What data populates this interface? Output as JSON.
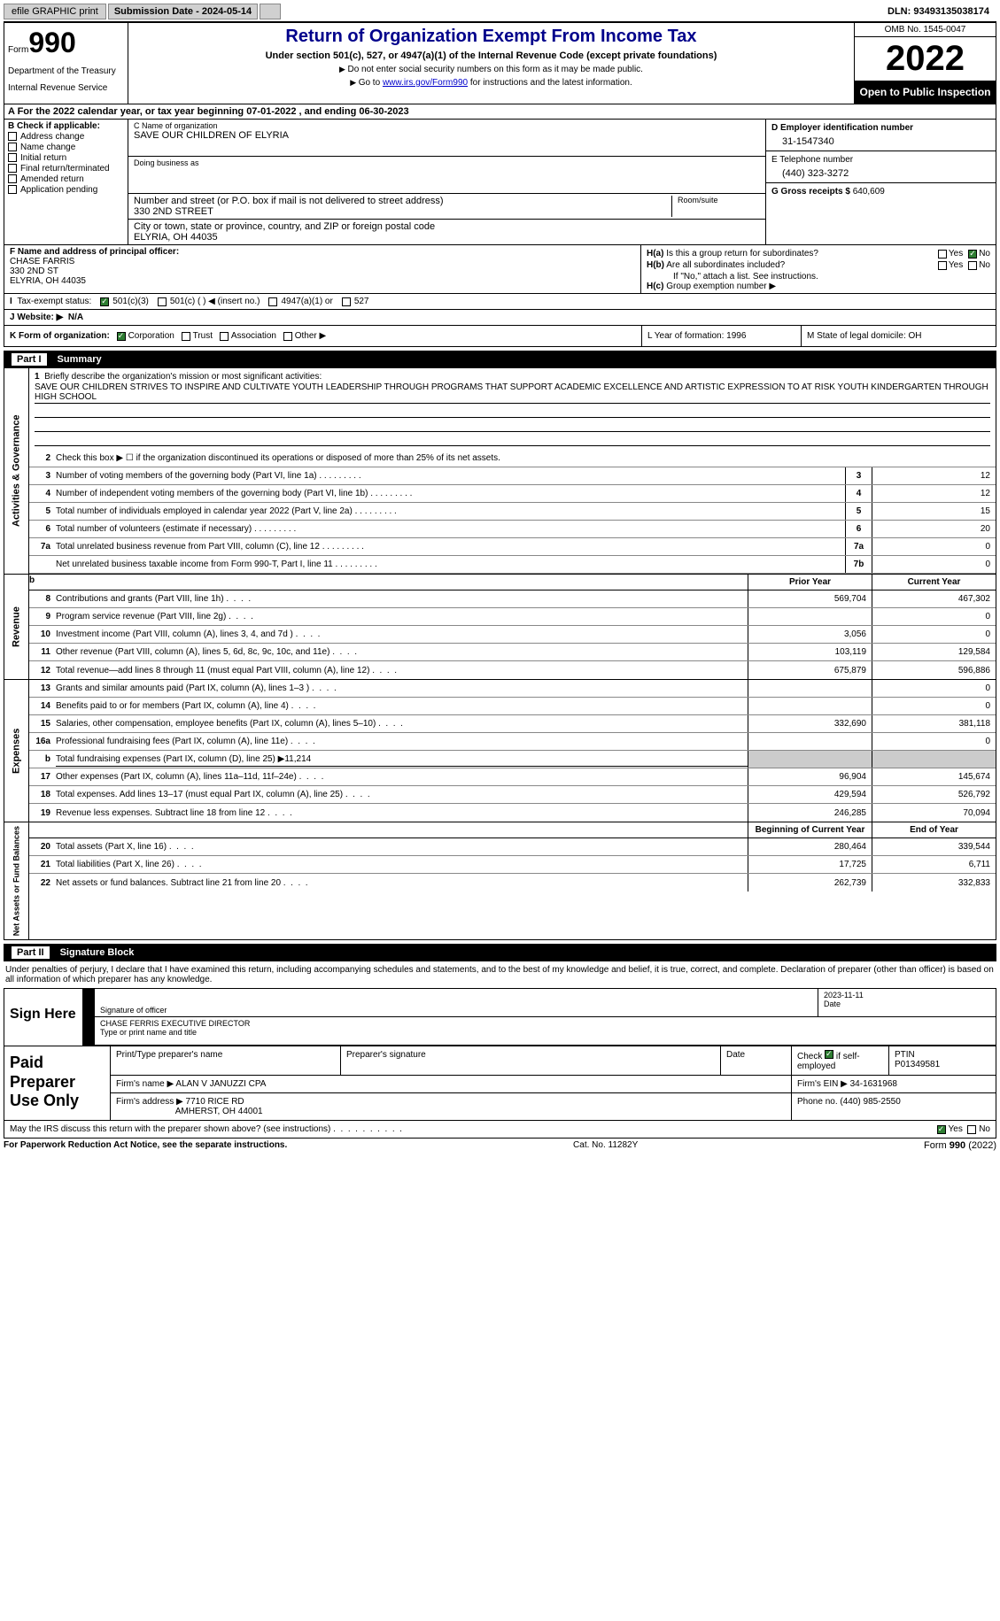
{
  "topbar": {
    "efile": "efile GRAPHIC print",
    "submission_label": "Submission Date - 2024-05-14",
    "dln": "DLN: 93493135038174"
  },
  "header": {
    "form_prefix": "Form",
    "form_number": "990",
    "dept": "Department of the Treasury",
    "irs": "Internal Revenue Service",
    "title": "Return of Organization Exempt From Income Tax",
    "subtitle": "Under section 501(c), 527, or 4947(a)(1) of the Internal Revenue Code (except private foundations)",
    "instr1": "Do not enter social security numbers on this form as it may be made public.",
    "instr2_pre": "Go to ",
    "instr2_link": "www.irs.gov/Form990",
    "instr2_post": " for instructions and the latest information.",
    "omb": "OMB No. 1545-0047",
    "year": "2022",
    "open": "Open to Public Inspection"
  },
  "period": "A For the 2022 calendar year, or tax year beginning 07-01-2022    , and ending 06-30-2023",
  "box_b": {
    "label": "B Check if applicable:",
    "opts": [
      "Address change",
      "Name change",
      "Initial return",
      "Final return/terminated",
      "Amended return",
      "Application pending"
    ]
  },
  "box_c": {
    "name_label": "C Name of organization",
    "name": "SAVE OUR CHILDREN OF ELYRIA",
    "dba_label": "Doing business as",
    "addr_label": "Number and street (or P.O. box if mail is not delivered to street address)",
    "addr": "330 2ND STREET",
    "room_label": "Room/suite",
    "city_label": "City or town, state or province, country, and ZIP or foreign postal code",
    "city": "ELYRIA, OH  44035"
  },
  "box_d": {
    "ein_label": "D Employer identification number",
    "ein": "31-1547340",
    "phone_label": "E Telephone number",
    "phone": "(440) 323-3272",
    "gross_label": "G Gross receipts $",
    "gross": "640,609"
  },
  "box_f": {
    "label": "F Name and address of principal officer:",
    "name": "CHASE FARRIS",
    "addr1": "330 2ND ST",
    "addr2": "ELYRIA, OH  44035"
  },
  "box_h": {
    "a_label": "Is this a group return for subordinates?",
    "b_label": "Are all subordinates included?",
    "b_note": "If \"No,\" attach a list. See instructions.",
    "c_label": "Group exemption number ▶",
    "yes": "Yes",
    "no": "No"
  },
  "box_i": {
    "label": "Tax-exempt status:",
    "o1": "501(c)(3)",
    "o2": "501(c) (  ) ◀ (insert no.)",
    "o3": "4947(a)(1) or",
    "o4": "527"
  },
  "box_j": {
    "label": "J   Website: ▶",
    "val": "N/A"
  },
  "box_k": {
    "label": "K Form of organization:",
    "o1": "Corporation",
    "o2": "Trust",
    "o3": "Association",
    "o4": "Other ▶"
  },
  "box_l": "L Year of formation: 1996",
  "box_m": "M State of legal domicile: OH",
  "part1": {
    "num": "Part I",
    "title": "Summary"
  },
  "summary": {
    "mission_label": "Briefly describe the organization's mission or most significant activities:",
    "mission": "SAVE OUR CHILDREN STRIVES TO INSPIRE AND CULTIVATE YOUTH LEADERSHIP THROUGH PROGRAMS THAT SUPPORT ACADEMIC EXCELLENCE AND ARTISTIC EXPRESSION TO AT RISK YOUTH KINDERGARTEN THROUGH HIGH SCHOOL",
    "line2": "Check this box ▶ ☐ if the organization discontinued its operations or disposed of more than 25% of its net assets.",
    "lines_gov": [
      {
        "n": "3",
        "t": "Number of voting members of the governing body (Part VI, line 1a)",
        "b": "3",
        "v": "12"
      },
      {
        "n": "4",
        "t": "Number of independent voting members of the governing body (Part VI, line 1b)",
        "b": "4",
        "v": "12"
      },
      {
        "n": "5",
        "t": "Total number of individuals employed in calendar year 2022 (Part V, line 2a)",
        "b": "5",
        "v": "15"
      },
      {
        "n": "6",
        "t": "Total number of volunteers (estimate if necessary)",
        "b": "6",
        "v": "20"
      },
      {
        "n": "7a",
        "t": "Total unrelated business revenue from Part VIII, column (C), line 12",
        "b": "7a",
        "v": "0"
      },
      {
        "n": "",
        "t": "Net unrelated business taxable income from Form 990-T, Part I, line 11",
        "b": "7b",
        "v": "0"
      }
    ],
    "prior_label": "Prior Year",
    "current_label": "Current Year",
    "revenue": [
      {
        "n": "8",
        "t": "Contributions and grants (Part VIII, line 1h)",
        "p": "569,704",
        "c": "467,302"
      },
      {
        "n": "9",
        "t": "Program service revenue (Part VIII, line 2g)",
        "p": "",
        "c": "0"
      },
      {
        "n": "10",
        "t": "Investment income (Part VIII, column (A), lines 3, 4, and 7d )",
        "p": "3,056",
        "c": "0"
      },
      {
        "n": "11",
        "t": "Other revenue (Part VIII, column (A), lines 5, 6d, 8c, 9c, 10c, and 11e)",
        "p": "103,119",
        "c": "129,584"
      },
      {
        "n": "12",
        "t": "Total revenue—add lines 8 through 11 (must equal Part VIII, column (A), line 12)",
        "p": "675,879",
        "c": "596,886"
      }
    ],
    "expenses": [
      {
        "n": "13",
        "t": "Grants and similar amounts paid (Part IX, column (A), lines 1–3 )",
        "p": "",
        "c": "0"
      },
      {
        "n": "14",
        "t": "Benefits paid to or for members (Part IX, column (A), line 4)",
        "p": "",
        "c": "0"
      },
      {
        "n": "15",
        "t": "Salaries, other compensation, employee benefits (Part IX, column (A), lines 5–10)",
        "p": "332,690",
        "c": "381,118"
      },
      {
        "n": "16a",
        "t": "Professional fundraising fees (Part IX, column (A), line 11e)",
        "p": "",
        "c": "0"
      },
      {
        "n": "b",
        "t": "Total fundraising expenses (Part IX, column (D), line 25) ▶11,214",
        "p": "shaded",
        "c": "shaded"
      },
      {
        "n": "17",
        "t": "Other expenses (Part IX, column (A), lines 11a–11d, 11f–24e)",
        "p": "96,904",
        "c": "145,674"
      },
      {
        "n": "18",
        "t": "Total expenses. Add lines 13–17 (must equal Part IX, column (A), line 25)",
        "p": "429,594",
        "c": "526,792"
      },
      {
        "n": "19",
        "t": "Revenue less expenses. Subtract line 18 from line 12",
        "p": "246,285",
        "c": "70,094"
      }
    ],
    "begin_label": "Beginning of Current Year",
    "end_label": "End of Year",
    "netassets": [
      {
        "n": "20",
        "t": "Total assets (Part X, line 16)",
        "p": "280,464",
        "c": "339,544"
      },
      {
        "n": "21",
        "t": "Total liabilities (Part X, line 26)",
        "p": "17,725",
        "c": "6,711"
      },
      {
        "n": "22",
        "t": "Net assets or fund balances. Subtract line 21 from line 20",
        "p": "262,739",
        "c": "332,833"
      }
    ],
    "tab_gov": "Activities & Governance",
    "tab_rev": "Revenue",
    "tab_exp": "Expenses",
    "tab_net": "Net Assets or Fund Balances"
  },
  "part2": {
    "num": "Part II",
    "title": "Signature Block"
  },
  "sig": {
    "intro": "Under penalties of perjury, I declare that I have examined this return, including accompanying schedules and statements, and to the best of my knowledge and belief, it is true, correct, and complete. Declaration of preparer (other than officer) is based on all information of which preparer has any knowledge.",
    "sign_here": "Sign Here",
    "sig_of_officer": "Signature of officer",
    "date": "2023-11-11",
    "date_lbl": "Date",
    "name_title": "CHASE FERRIS  EXECUTIVE DIRECTOR",
    "name_title_lbl": "Type or print name and title"
  },
  "paid": {
    "title": "Paid Preparer Use Only",
    "h1": "Print/Type preparer's name",
    "h2": "Preparer's signature",
    "h3": "Date",
    "h4_check": "Check",
    "h4_if": "if self-employed",
    "h5": "PTIN",
    "ptin": "P01349581",
    "firm_name_lbl": "Firm's name    ▶",
    "firm_name": "ALAN V JANUZZI CPA",
    "firm_ein_lbl": "Firm's EIN ▶",
    "firm_ein": "34-1631968",
    "firm_addr_lbl": "Firm's address ▶",
    "firm_addr1": "7710 RICE RD",
    "firm_addr2": "AMHERST, OH  44001",
    "phone_lbl": "Phone no.",
    "phone": "(440) 985-2550"
  },
  "discuss": {
    "text": "May the IRS discuss this return with the preparer shown above? (see instructions)",
    "yes": "Yes",
    "no": "No"
  },
  "footer": {
    "left": "For Paperwork Reduction Act Notice, see the separate instructions.",
    "center": "Cat. No. 11282Y",
    "right": "Form 990 (2022)"
  }
}
